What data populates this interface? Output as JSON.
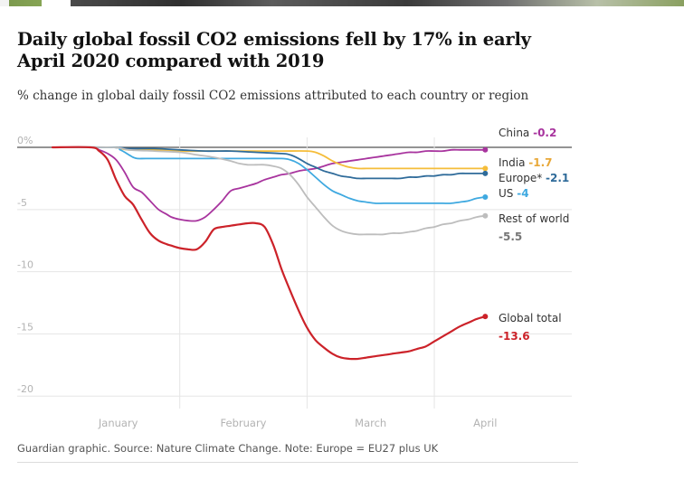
{
  "headline": "Daily global fossil CO2 emissions fell by 17% in early April 2020 compared with 2019",
  "standfirst": "% change in global daily fossil CO2 emissions attributed to each country or region",
  "footer": "Guardian graphic. Source: Nature Climate Change. Note: Europe = EU27 plus UK",
  "chart_data": {
    "type": "line",
    "title": "Daily global fossil CO2 emissions fell by 17% in early April 2020 compared with 2019",
    "subtitle": "% change in global daily fossil CO2 emissions attributed to each country or region",
    "ylim": [
      -21,
      0.8
    ],
    "xlim": [
      0,
      103
    ],
    "grid": true,
    "legend": "inline-right",
    "x_axis": {
      "tick_labels": [
        "January",
        "February",
        "March",
        "April"
      ],
      "tick_positions": [
        15.5,
        45,
        75,
        102
      ],
      "gridlines": [
        30,
        60,
        90
      ]
    },
    "y_axis": {
      "ticks": [
        0,
        -5,
        -10,
        -15,
        -20
      ],
      "tick_labels": [
        "0%",
        "-5",
        "-10",
        "-15",
        "-20"
      ]
    },
    "series": [
      {
        "name": "China",
        "value_label": "-0.2",
        "color": "#a8349e",
        "label_color": "#a8349e",
        "x": [
          0,
          9,
          11,
          13,
          15,
          17,
          19,
          21,
          23,
          25,
          27,
          28,
          30,
          32,
          34,
          36,
          38,
          40,
          42,
          44,
          46,
          48,
          50,
          52,
          54,
          56,
          58,
          60,
          62,
          64,
          66,
          68,
          70,
          72,
          74,
          76,
          78,
          80,
          82,
          84,
          86,
          88,
          90,
          92,
          94,
          96,
          98,
          100,
          102
        ],
        "y": [
          0,
          0,
          -0.2,
          -0.5,
          -1.0,
          -2.0,
          -3.2,
          -3.6,
          -4.3,
          -5.0,
          -5.4,
          -5.6,
          -5.8,
          -5.9,
          -5.9,
          -5.6,
          -5.0,
          -4.3,
          -3.5,
          -3.3,
          -3.1,
          -2.9,
          -2.6,
          -2.4,
          -2.2,
          -2.1,
          -1.9,
          -1.8,
          -1.7,
          -1.5,
          -1.3,
          -1.2,
          -1.1,
          -1.0,
          -0.9,
          -0.8,
          -0.7,
          -0.6,
          -0.5,
          -0.4,
          -0.4,
          -0.3,
          -0.3,
          -0.3,
          -0.2,
          -0.2,
          -0.2,
          -0.2,
          -0.2
        ]
      },
      {
        "name": "India",
        "value_label": "-1.7",
        "color": "#f5bd3a",
        "label_color": "#e8a838",
        "x": [
          0,
          14,
          16,
          18,
          24,
          30,
          36,
          42,
          48,
          54,
          60,
          62,
          64,
          66,
          68,
          70,
          72,
          74,
          76,
          78,
          80,
          82,
          84,
          86,
          88,
          90,
          92,
          94,
          96,
          98,
          100,
          102
        ],
        "y": [
          0,
          0,
          -0.1,
          -0.2,
          -0.2,
          -0.3,
          -0.3,
          -0.3,
          -0.3,
          -0.3,
          -0.3,
          -0.4,
          -0.7,
          -1.1,
          -1.4,
          -1.6,
          -1.7,
          -1.7,
          -1.7,
          -1.7,
          -1.7,
          -1.7,
          -1.7,
          -1.7,
          -1.7,
          -1.7,
          -1.7,
          -1.7,
          -1.7,
          -1.7,
          -1.7,
          -1.7
        ]
      },
      {
        "name": "Europe*",
        "value_label": "-2.1",
        "color": "#2f6b9a",
        "label_color": "#2f6b9a",
        "x": [
          0,
          14,
          18,
          24,
          30,
          36,
          42,
          48,
          54,
          56,
          58,
          60,
          62,
          64,
          66,
          68,
          70,
          72,
          74,
          76,
          78,
          80,
          82,
          84,
          86,
          88,
          90,
          92,
          94,
          96,
          98,
          100,
          102
        ],
        "y": [
          0,
          0,
          -0.1,
          -0.1,
          -0.2,
          -0.3,
          -0.3,
          -0.4,
          -0.5,
          -0.6,
          -0.9,
          -1.3,
          -1.6,
          -1.9,
          -2.1,
          -2.3,
          -2.4,
          -2.5,
          -2.5,
          -2.5,
          -2.5,
          -2.5,
          -2.5,
          -2.4,
          -2.4,
          -2.3,
          -2.3,
          -2.2,
          -2.2,
          -2.1,
          -2.1,
          -2.1,
          -2.1
        ]
      },
      {
        "name": "US",
        "value_label": "-4",
        "color": "#3fa9e0",
        "label_color": "#3fa9e0",
        "x": [
          0,
          14,
          16,
          18,
          19,
          20,
          22,
          26,
          30,
          36,
          42,
          48,
          54,
          56,
          58,
          60,
          62,
          64,
          66,
          68,
          70,
          72,
          74,
          76,
          78,
          80,
          82,
          84,
          86,
          88,
          90,
          92,
          94,
          96,
          98,
          100,
          102
        ],
        "y": [
          0,
          0,
          -0.2,
          -0.6,
          -0.8,
          -0.9,
          -0.9,
          -0.9,
          -0.9,
          -0.9,
          -0.9,
          -0.9,
          -0.9,
          -1.0,
          -1.3,
          -1.8,
          -2.4,
          -3.0,
          -3.5,
          -3.8,
          -4.1,
          -4.3,
          -4.4,
          -4.5,
          -4.5,
          -4.5,
          -4.5,
          -4.5,
          -4.5,
          -4.5,
          -4.5,
          -4.5,
          -4.5,
          -4.4,
          -4.3,
          -4.1,
          -4.0
        ]
      },
      {
        "name": "Rest of world",
        "value_label": "-5.5",
        "color": "#bdbdbd",
        "label_color": "#777777",
        "x": [
          0,
          14,
          18,
          24,
          30,
          34,
          38,
          42,
          44,
          46,
          48,
          50,
          52,
          54,
          56,
          58,
          60,
          62,
          64,
          66,
          68,
          70,
          72,
          74,
          76,
          78,
          80,
          82,
          84,
          86,
          88,
          90,
          92,
          94,
          96,
          98,
          100,
          102
        ],
        "y": [
          0,
          0,
          -0.2,
          -0.3,
          -0.4,
          -0.6,
          -0.8,
          -1.1,
          -1.3,
          -1.4,
          -1.4,
          -1.4,
          -1.5,
          -1.7,
          -2.2,
          -3.0,
          -4.0,
          -4.8,
          -5.6,
          -6.3,
          -6.7,
          -6.9,
          -7.0,
          -7.0,
          -7.0,
          -7.0,
          -6.9,
          -6.9,
          -6.8,
          -6.7,
          -6.5,
          -6.4,
          -6.2,
          -6.1,
          -5.9,
          -5.8,
          -5.6,
          -5.5
        ]
      },
      {
        "name": "Global total",
        "value_label": "-13.6",
        "color": "#cc2229",
        "label_color": "#cc2229",
        "x": [
          0,
          9,
          11,
          13,
          15,
          17,
          19,
          21,
          23,
          25,
          27,
          28,
          30,
          32,
          34,
          36,
          38,
          40,
          42,
          44,
          46,
          48,
          50,
          52,
          54,
          56,
          58,
          60,
          62,
          64,
          66,
          68,
          70,
          72,
          74,
          76,
          78,
          80,
          82,
          84,
          86,
          88,
          90,
          92,
          94,
          96,
          98,
          100,
          102
        ],
        "y": [
          0,
          0,
          -0.3,
          -1.0,
          -2.6,
          -3.9,
          -4.6,
          -5.8,
          -6.9,
          -7.5,
          -7.8,
          -7.9,
          -8.1,
          -8.2,
          -8.2,
          -7.6,
          -6.6,
          -6.4,
          -6.3,
          -6.2,
          -6.1,
          -6.1,
          -6.4,
          -7.8,
          -9.8,
          -11.5,
          -13.1,
          -14.5,
          -15.5,
          -16.1,
          -16.6,
          -16.9,
          -17.0,
          -17.0,
          -16.9,
          -16.8,
          -16.7,
          -16.6,
          -16.5,
          -16.4,
          -16.2,
          -16.0,
          -15.6,
          -15.2,
          -14.8,
          -14.4,
          -14.1,
          -13.8,
          -13.6
        ]
      }
    ]
  }
}
